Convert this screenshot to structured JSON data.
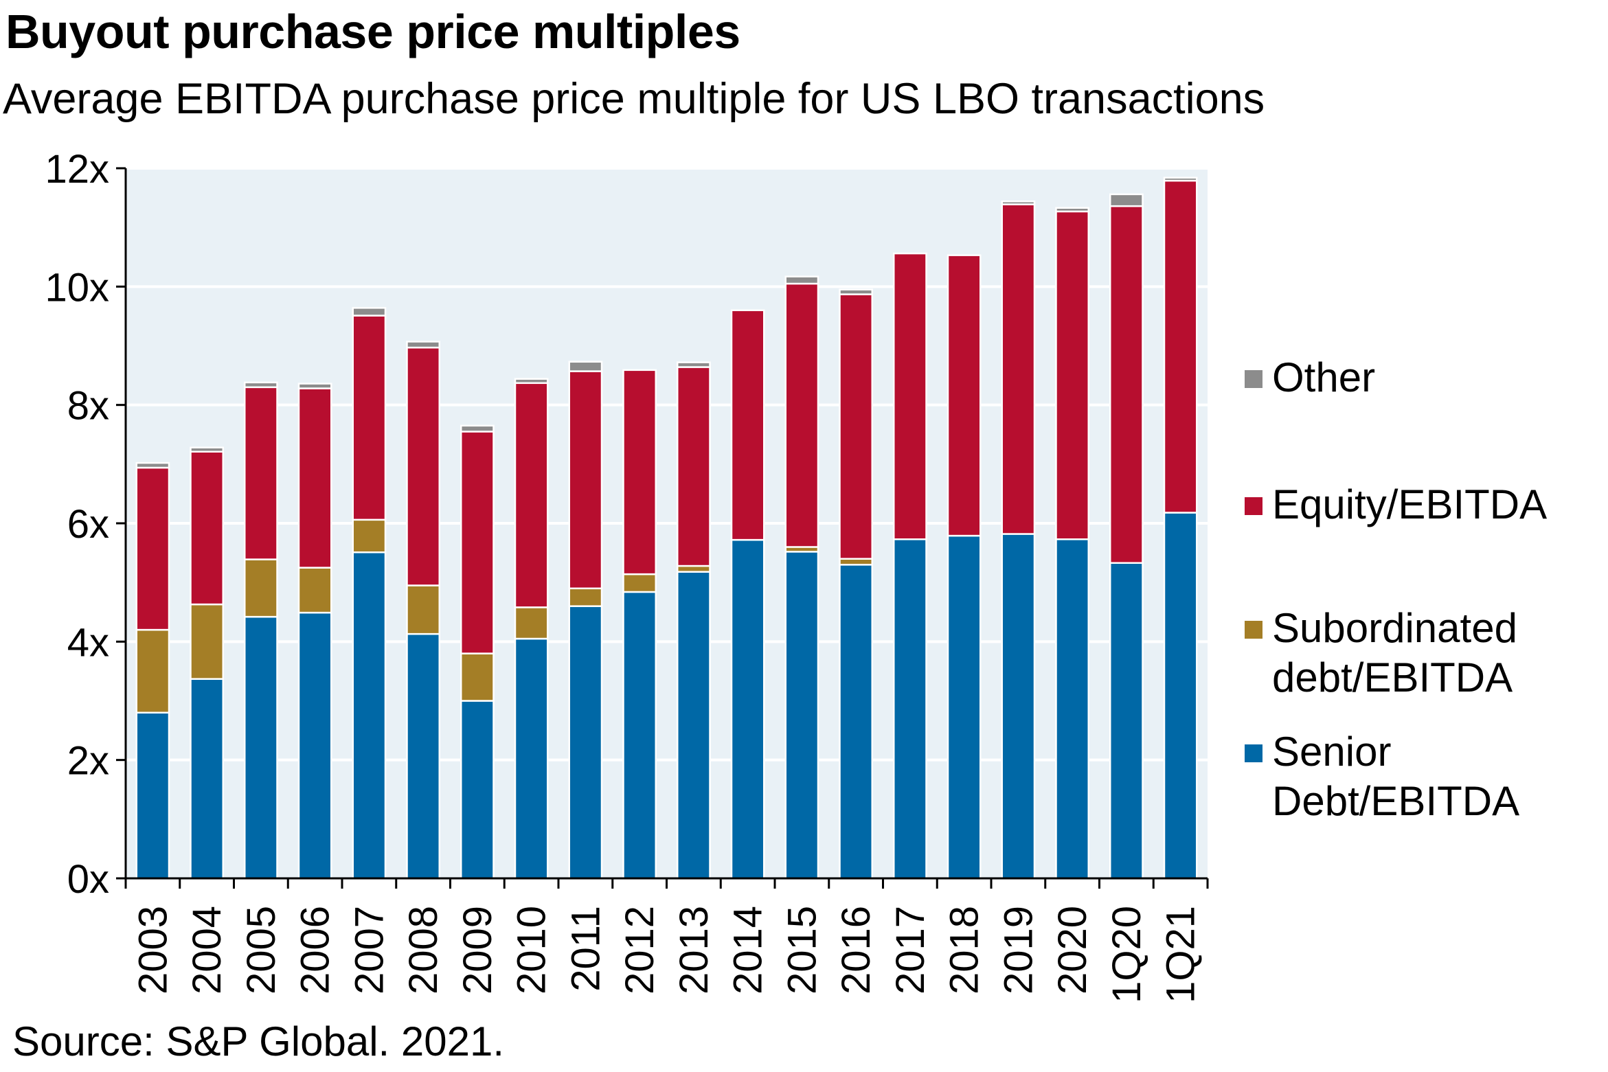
{
  "chart_data": {
    "type": "bar",
    "stacked": true,
    "title": "Buyout purchase price multiples",
    "subtitle": "Average EBITDA purchase price multiple for US LBO transactions",
    "source": "Source: S&P Global. 2021.",
    "categories": [
      "2003",
      "2004",
      "2005",
      "2006",
      "2007",
      "2008",
      "2009",
      "2010",
      "2011",
      "2012",
      "2013",
      "2014",
      "2015",
      "2016",
      "2017",
      "2018",
      "2019",
      "2020",
      "1Q20",
      "1Q21"
    ],
    "series": [
      {
        "name": "Senior Debt/EBITDA",
        "legend_lines": [
          "Senior",
          "Debt/EBITDA"
        ],
        "color": "#0068a6",
        "values": [
          2.8,
          3.37,
          4.42,
          4.49,
          5.51,
          4.13,
          3.0,
          4.05,
          4.6,
          4.84,
          5.18,
          5.72,
          5.52,
          5.3,
          5.73,
          5.79,
          5.82,
          5.73,
          5.33,
          6.18
        ]
      },
      {
        "name": "Subordinated debt/EBITDA",
        "legend_lines": [
          "Subordinated",
          "debt/EBITDA"
        ],
        "color": "#a47e26",
        "values": [
          1.4,
          1.26,
          0.97,
          0.76,
          0.55,
          0.82,
          0.8,
          0.53,
          0.3,
          0.3,
          0.1,
          0.0,
          0.08,
          0.1,
          0.0,
          0.0,
          0.0,
          0.0,
          0.0,
          0.0
        ]
      },
      {
        "name": "Equity/EBITDA",
        "legend_lines": [
          "Equity/EBITDA"
        ],
        "color": "#b70e2f",
        "values": [
          2.74,
          2.58,
          2.91,
          3.03,
          3.45,
          4.02,
          3.75,
          3.79,
          3.67,
          3.45,
          3.36,
          3.88,
          4.45,
          4.47,
          4.83,
          4.74,
          5.57,
          5.54,
          6.03,
          5.61
        ]
      },
      {
        "name": "Other",
        "legend_lines": [
          "Other"
        ],
        "color": "#8c8c8c",
        "values": [
          0.08,
          0.07,
          0.08,
          0.08,
          0.13,
          0.1,
          0.1,
          0.07,
          0.16,
          0.0,
          0.08,
          0.0,
          0.12,
          0.08,
          0.0,
          0.0,
          0.05,
          0.06,
          0.2,
          0.05
        ]
      }
    ],
    "yticks": [
      "0x",
      "2x",
      "4x",
      "6x",
      "8x",
      "10x",
      "12x"
    ],
    "ylim": [
      0,
      12
    ],
    "grid": true,
    "legend_position": "right"
  }
}
